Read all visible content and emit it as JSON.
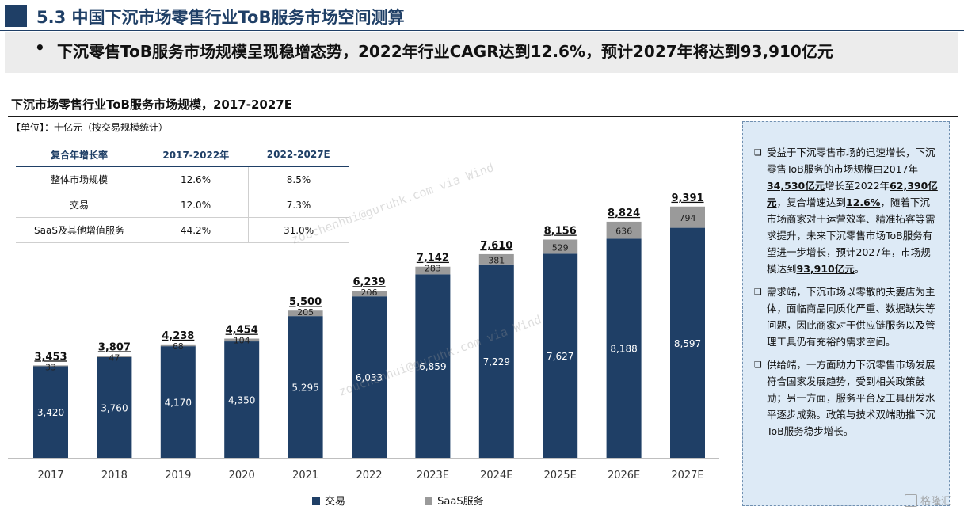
{
  "header": {
    "section_title": "5.3  中国下沉市场零售行业ToB服务市场空间测算",
    "subtitle_bullet": "•",
    "subtitle": "下沉零售ToB服务市场规模呈现稳增态势，2022年行业CAGR达到12.6%，预计2027年将达到93,910亿元"
  },
  "chart_header": {
    "title": "下沉市场零售行业ToB服务市场规模，2017-2027E",
    "unit": "【单位】：十亿元（按交易规模统计）"
  },
  "cagr_table": {
    "headers": [
      "复合年增长率",
      "2017-2022年",
      "2022-2027E"
    ],
    "rows": [
      [
        "整体市场规模",
        "12.6%",
        "8.5%"
      ],
      [
        "交易",
        "12.0%",
        "7.3%"
      ],
      [
        "SaaS及其他增值服务",
        "44.2%",
        "31.0%"
      ]
    ]
  },
  "chart_data": {
    "type": "bar",
    "stacked": true,
    "title": "下沉市场零售行业ToB服务市场规模，2017-2027E",
    "ylabel": "十亿元",
    "categories": [
      "2017",
      "2018",
      "2019",
      "2020",
      "2021",
      "2022",
      "2023E",
      "2024E",
      "2025E",
      "2026E",
      "2027E"
    ],
    "series": [
      {
        "name": "交易",
        "color": "#1f3f66",
        "values": [
          3420,
          3760,
          4170,
          4350,
          5295,
          6033,
          6859,
          7229,
          7627,
          8188,
          8597
        ],
        "labels": [
          "3,420",
          "3,760",
          "4,170",
          "4,350",
          "5,295",
          "6,033",
          "6,859",
          "7,229",
          "7,627",
          "8,188",
          "8,597"
        ]
      },
      {
        "name": "SaaS服务",
        "color": "#9a9a9a",
        "values": [
          33,
          47,
          68,
          104,
          205,
          206,
          283,
          381,
          529,
          636,
          794
        ],
        "labels": [
          "33",
          "47",
          "68",
          "104",
          "205",
          "206",
          "283",
          "381",
          "529",
          "636",
          "794"
        ]
      }
    ],
    "totals": [
      3453,
      3807,
      4238,
      4454,
      5500,
      6239,
      7142,
      7610,
      8156,
      8824,
      9391
    ],
    "total_labels": [
      "3,453",
      "3,807",
      "4,238",
      "4,454",
      "5,500",
      "6,239",
      "7,142",
      "7,610",
      "8,156",
      "8,824",
      "9,391"
    ],
    "ylim": [
      0,
      10000
    ],
    "legend_position": "bottom-center"
  },
  "legend": {
    "items": [
      {
        "label": "交易",
        "color": "#1f3f66"
      },
      {
        "label": "SaaS服务",
        "color": "#9a9a9a"
      }
    ]
  },
  "right_panel": {
    "bullet_glyph": "❑",
    "para1": {
      "t1": "受益于下沉零售市场的迅速增长，下沉零售ToB服务的市场规模由2017年",
      "h1": "34,530亿元",
      "t2": "增长至2022年",
      "h2": "62,390亿元",
      "t3": "，复合增速达到",
      "h3": "12.6%",
      "t4": "，随着下沉市场商家对于运营效率、精准拓客等需求提升，未来下沉零售市场ToB服务有望进一步增长，预计2027年，市场规模达到",
      "h4": "93,910亿元",
      "t5": "。"
    },
    "para2": "需求端，下沉市场以零散的夫妻店为主体，面临商品同质化严重、数据缺失等问题，因此商家对于供应链服务以及管理工具仍有充裕的需求空间。",
    "para3": "供给端，一方面助力下沉零售市场发展符合国家发展趋势，受到相关政策鼓励；另一方面，服务平台及工具研发水平逐步成熟。政策与技术双端助推下沉ToB服务稳步增长。"
  },
  "watermark": {
    "line1": "zouchenhui@guruhk.com via Wind",
    "line2": "zouchenhui@guruhk.com via Wind"
  },
  "logo": {
    "text": "格隆汇"
  }
}
